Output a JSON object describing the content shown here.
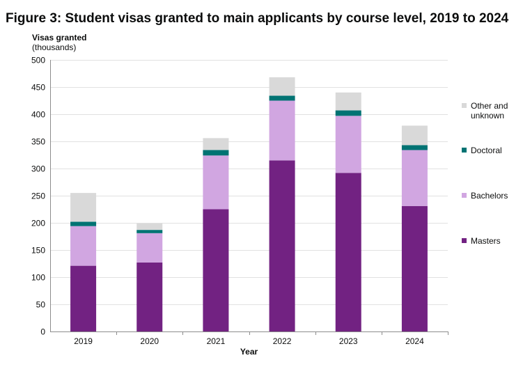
{
  "chart_data": {
    "type": "bar",
    "stacked": true,
    "title": "Figure 3: Student visas granted to main applicants by course level, 2019 to 2024",
    "ylabel": "Visas granted",
    "ylabel_unit": "(thousands)",
    "xlabel": "Year",
    "ylim": [
      0,
      500
    ],
    "yticks": [
      0,
      50,
      100,
      150,
      200,
      250,
      300,
      350,
      400,
      450,
      500
    ],
    "categories": [
      "2019",
      "2020",
      "2021",
      "2022",
      "2023",
      "2024"
    ],
    "series": [
      {
        "name": "Masters",
        "color": "#722282",
        "values": [
          121,
          127,
          225,
          315,
          292,
          231
        ]
      },
      {
        "name": "Bachelors",
        "color": "#d1a6e1",
        "values": [
          73,
          54,
          99,
          110,
          105,
          103
        ]
      },
      {
        "name": "Doctoral",
        "color": "#007373",
        "values": [
          8,
          6,
          10,
          9,
          10,
          9
        ]
      },
      {
        "name": "Other and unknown",
        "color": "#d9d9d9",
        "values": [
          53,
          12,
          22,
          34,
          33,
          36
        ]
      }
    ],
    "legend": {
      "position": "right",
      "order": [
        "Other and unknown",
        "Doctoral",
        "Bachelors",
        "Masters"
      ],
      "labels": {
        "Other and unknown": [
          "Other and",
          "unknown"
        ],
        "Doctoral": [
          "Doctoral"
        ],
        "Bachelors": [
          "Bachelors"
        ],
        "Masters": [
          "Masters"
        ]
      }
    }
  }
}
